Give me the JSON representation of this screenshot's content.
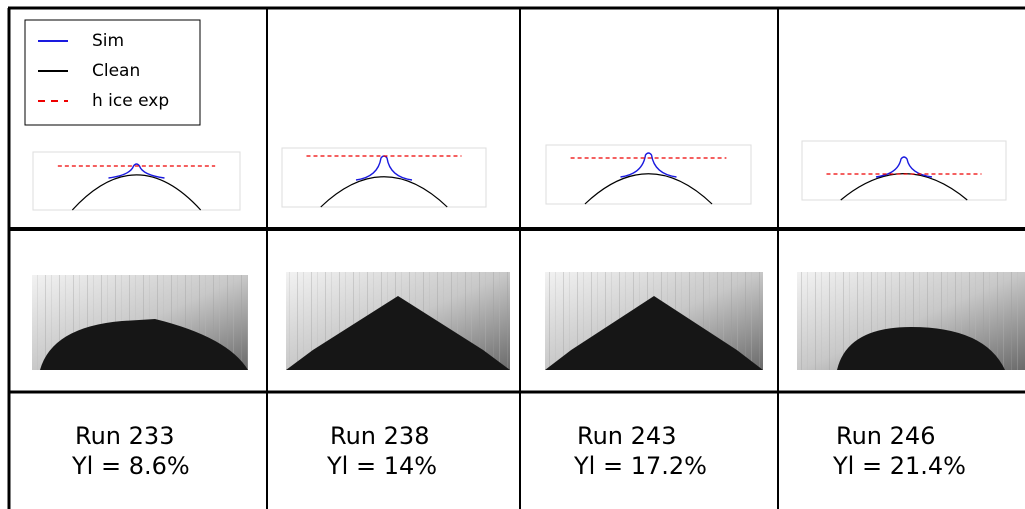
{
  "legend": [
    {
      "label": "Sim"
    },
    {
      "label": "Clean"
    },
    {
      "label": "h ice exp"
    }
  ],
  "columns": [
    {
      "run": "Run 233",
      "yl": "Yl = 8.6%"
    },
    {
      "run": "Run 238",
      "yl": "Yl = 14%"
    },
    {
      "run": "Run 243",
      "yl": "Yl = 17.2%"
    },
    {
      "run": "Run 246",
      "yl": "Yl = 21.4%"
    }
  ]
}
